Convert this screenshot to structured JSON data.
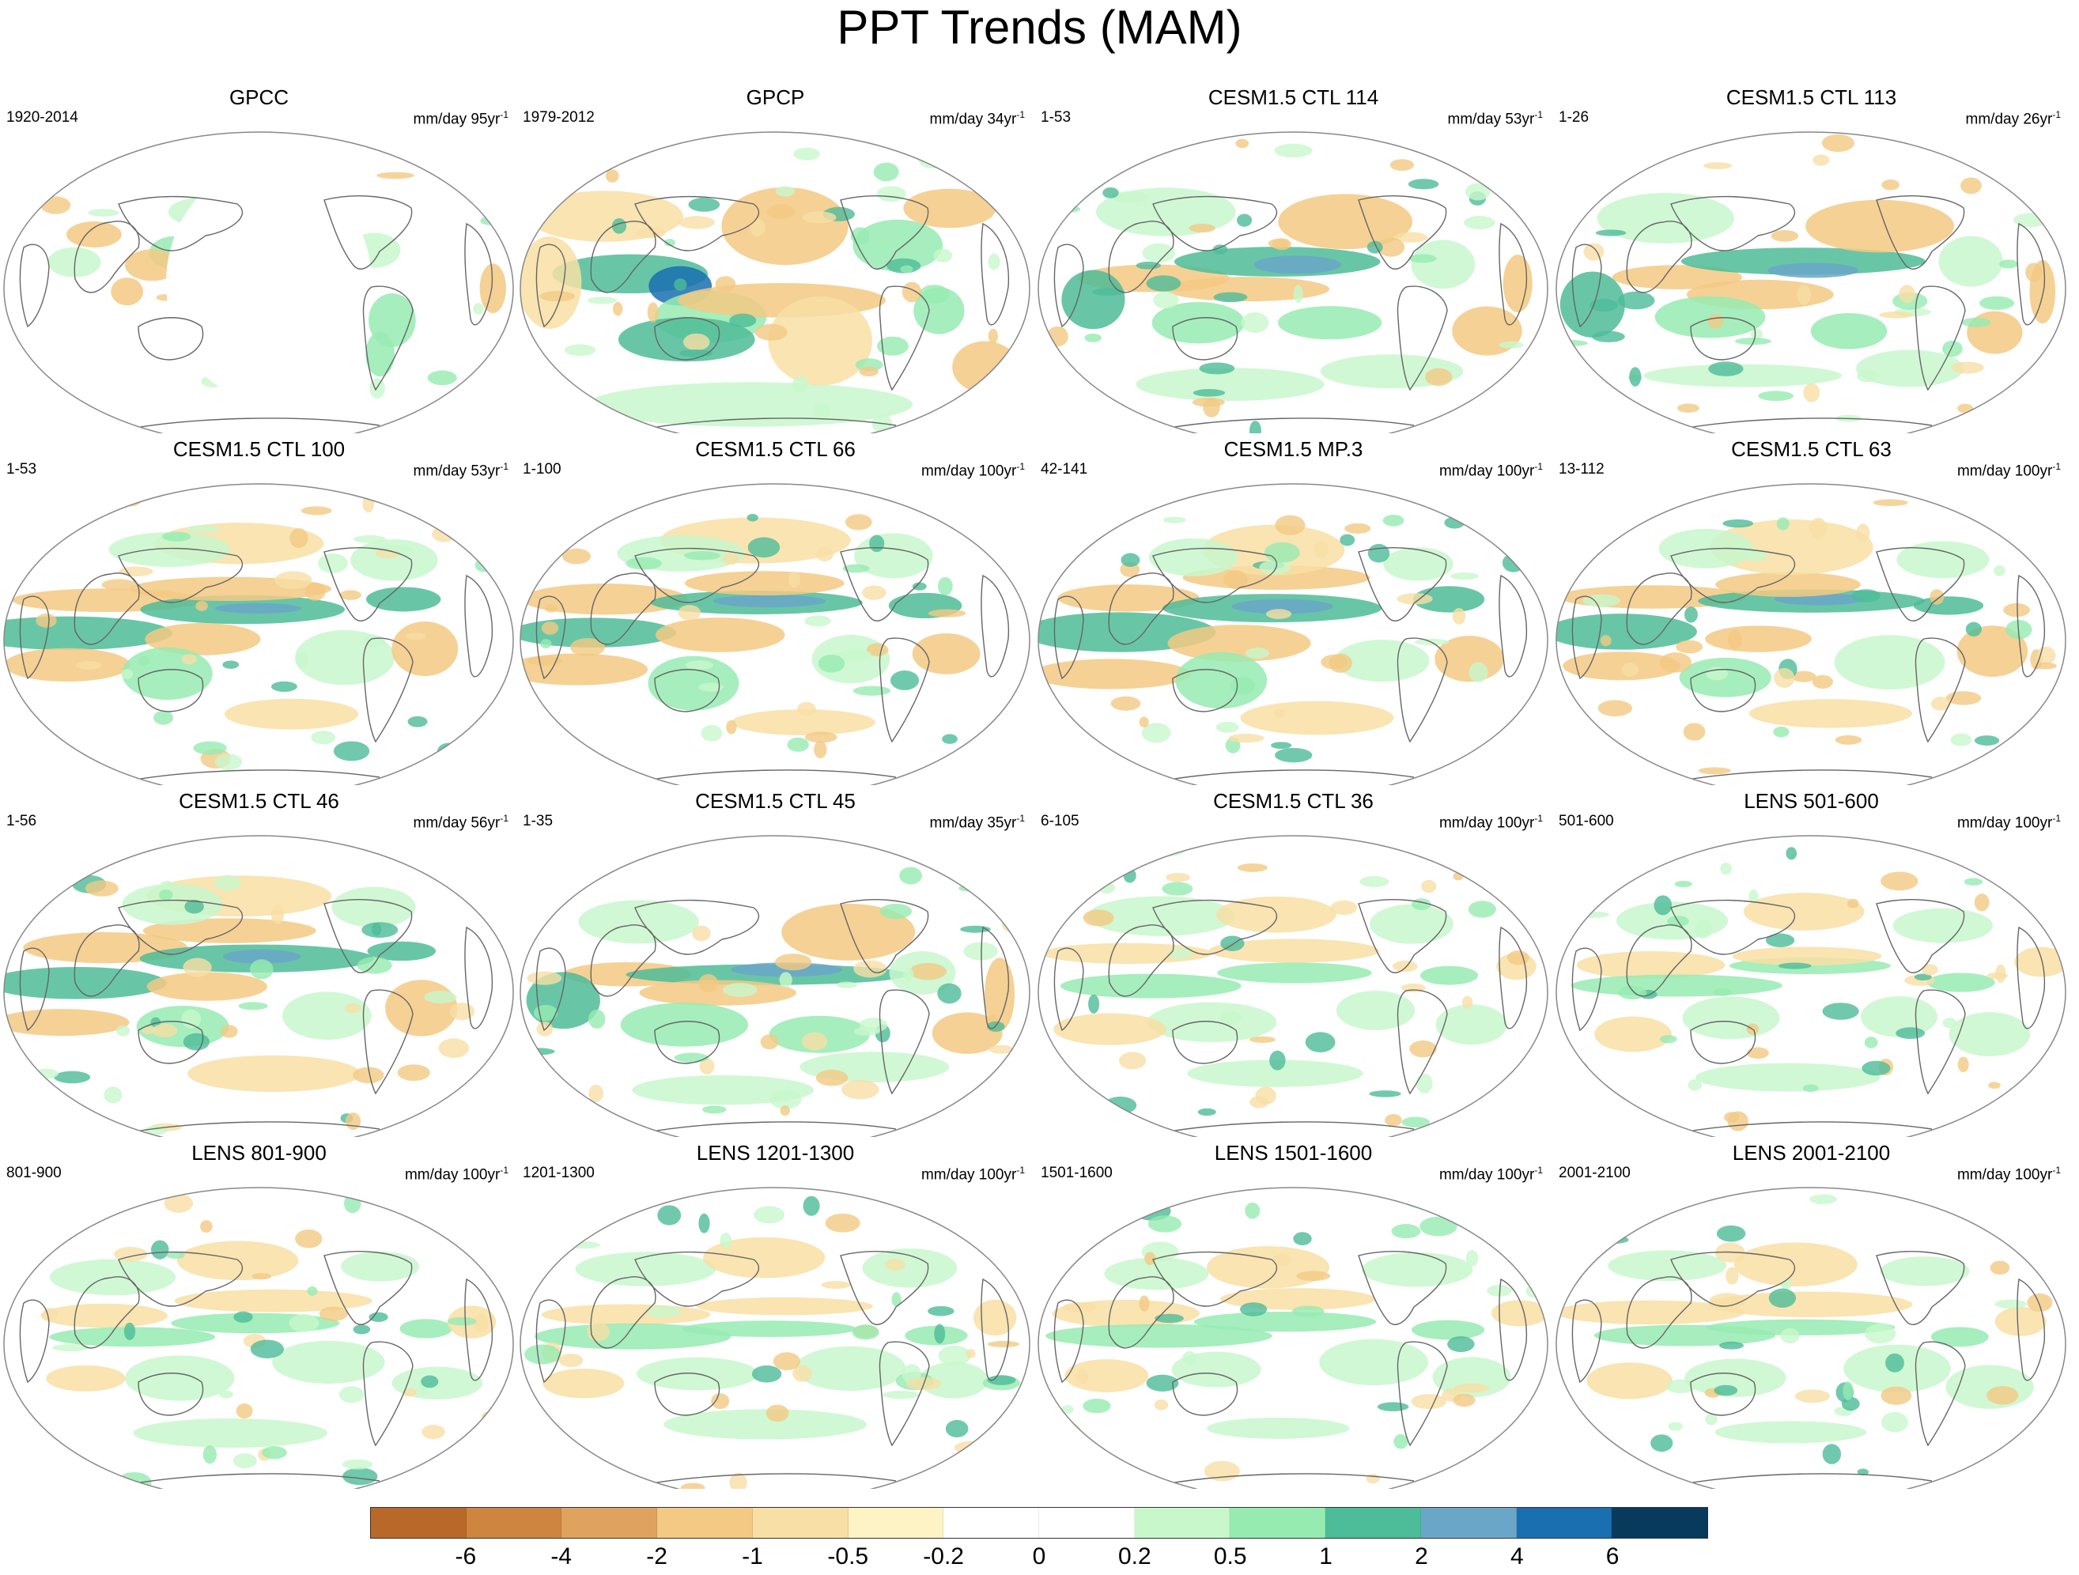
{
  "title": "PPT Trends (MAM)",
  "units_base": "mm/day",
  "units_suffix": "yr",
  "units_exp": "-1",
  "panels": [
    {
      "title": "GPCC",
      "period": "1920-2014",
      "per": "95",
      "map": "gpcc"
    },
    {
      "title": "GPCP",
      "period": "1979-2012",
      "per": "34",
      "map": "gpcp"
    },
    {
      "title": "CESM1.5 CTL 114",
      "period": "1-53",
      "per": "53",
      "map": "strong"
    },
    {
      "title": "CESM1.5 CTL 113",
      "period": "1-26",
      "per": "26",
      "map": "strong"
    },
    {
      "title": "CESM1.5 CTL 100",
      "period": "1-53",
      "per": "53",
      "map": "medium"
    },
    {
      "title": "CESM1.5 CTL 66",
      "period": "1-100",
      "per": "100",
      "map": "medium"
    },
    {
      "title": "CESM1.5 MP.3",
      "period": "42-141",
      "per": "100",
      "map": "medium"
    },
    {
      "title": "CESM1.5 CTL 63",
      "period": "13-112",
      "per": "100",
      "map": "medium"
    },
    {
      "title": "CESM1.5 CTL 46",
      "period": "1-56",
      "per": "56",
      "map": "medium"
    },
    {
      "title": "CESM1.5 CTL 45",
      "period": "1-35",
      "per": "35",
      "map": "strong"
    },
    {
      "title": "CESM1.5 CTL 36",
      "period": "6-105",
      "per": "100",
      "map": "weak"
    },
    {
      "title": "LENS 501-600",
      "period": "501-600",
      "per": "100",
      "map": "weak"
    },
    {
      "title": "LENS 801-900",
      "period": "801-900",
      "per": "100",
      "map": "weak"
    },
    {
      "title": "LENS 1201-1300",
      "period": "1201-1300",
      "per": "100",
      "map": "weak"
    },
    {
      "title": "LENS 1501-1600",
      "period": "1501-1600",
      "per": "100",
      "map": "weak"
    },
    {
      "title": "LENS 2001-2100",
      "period": "2001-2100",
      "per": "100",
      "map": "weak"
    }
  ],
  "colorbar": {
    "colors": [
      "#b8692a",
      "#cd853f",
      "#e0a35f",
      "#f3c983",
      "#f8dfa5",
      "#fdf3c4",
      "#ffffff",
      "#ffffff",
      "#c8f7cc",
      "#96ebb1",
      "#4dbc98",
      "#6aa6c8",
      "#1a6fb0",
      "#083a5e"
    ],
    "labels": [
      "-6",
      "-4",
      "-2",
      "-1",
      "-0.5",
      "-0.2",
      "0",
      "0.2",
      "0.5",
      "1",
      "2",
      "4",
      "6"
    ]
  }
}
